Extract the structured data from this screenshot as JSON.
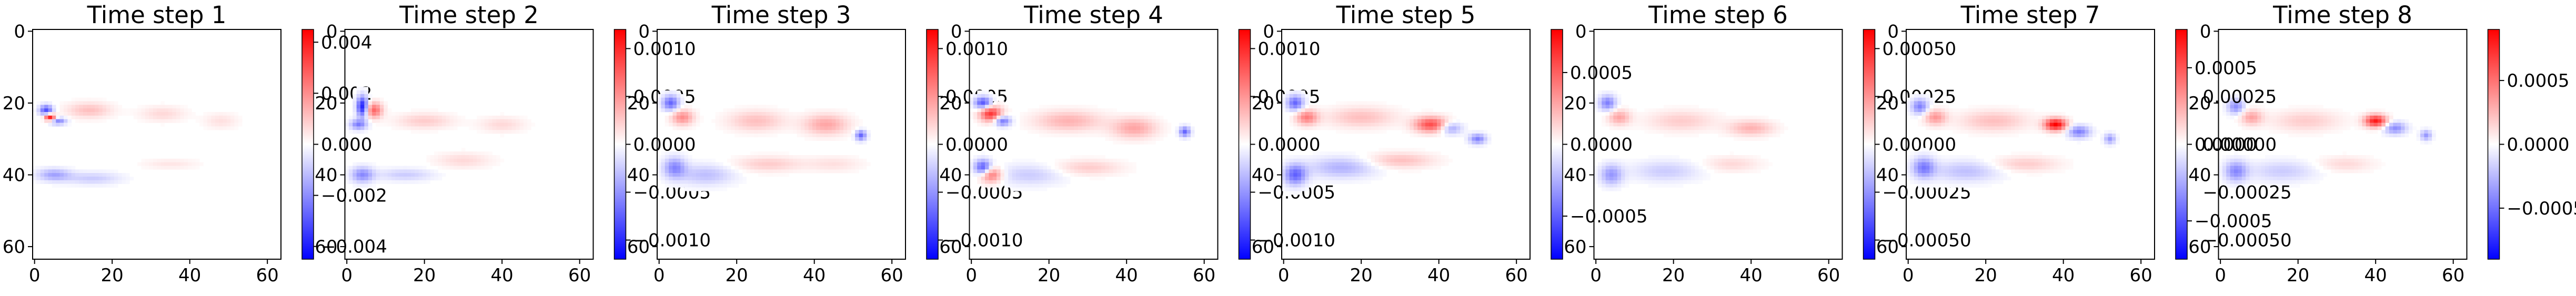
{
  "chart_data": {
    "type": "heatmap",
    "colormap": "bwr",
    "grid": false,
    "panels": [
      {
        "title": "Time step 1",
        "vmin": -0.0045,
        "vmax": 0.0045,
        "cbar_ticks": [
          -0.004,
          -0.002,
          0.0,
          0.002,
          0.004
        ],
        "cbar_labels": [
          "−0.004",
          "−0.002",
          "0.000",
          "0.002",
          "0.004"
        ],
        "blobs": [
          {
            "x": 4,
            "y": 24,
            "sx": 1.0,
            "sy": 0.7,
            "v": 1.0
          },
          {
            "x": 3,
            "y": 22,
            "sx": 1.2,
            "sy": 1.0,
            "v": -0.7
          },
          {
            "x": 6,
            "y": 25,
            "sx": 1.5,
            "sy": 0.7,
            "v": -0.5
          },
          {
            "x": 14,
            "y": 22,
            "sx": 4,
            "sy": 1.5,
            "v": 0.25
          },
          {
            "x": 33,
            "y": 23,
            "sx": 4,
            "sy": 1.5,
            "v": 0.15
          },
          {
            "x": 48,
            "y": 25,
            "sx": 3,
            "sy": 1.5,
            "v": 0.12
          },
          {
            "x": 5,
            "y": 40,
            "sx": 3,
            "sy": 1.2,
            "v": -0.35
          },
          {
            "x": 15,
            "y": 41,
            "sx": 5,
            "sy": 1.2,
            "v": -0.2
          },
          {
            "x": 35,
            "y": 37,
            "sx": 5,
            "sy": 1.0,
            "v": 0.1
          }
        ]
      },
      {
        "title": "Time step 2",
        "vmin": -0.0012,
        "vmax": 0.0012,
        "cbar_ticks": [
          -0.001,
          -0.0005,
          0.0,
          0.0005,
          0.001
        ],
        "cbar_labels": [
          "−0.0010",
          "−0.0005",
          "0.0000",
          "0.0005",
          "0.0010"
        ],
        "blobs": [
          {
            "x": 4,
            "y": 21,
            "sx": 1.0,
            "sy": 2.0,
            "v": -0.9
          },
          {
            "x": 7,
            "y": 22,
            "sx": 1.5,
            "sy": 1.5,
            "v": 0.6
          },
          {
            "x": 3,
            "y": 26,
            "sx": 1.5,
            "sy": 1.0,
            "v": -0.5
          },
          {
            "x": 20,
            "y": 25,
            "sx": 5,
            "sy": 1.5,
            "v": 0.2
          },
          {
            "x": 40,
            "y": 26,
            "sx": 4,
            "sy": 1.5,
            "v": 0.15
          },
          {
            "x": 4,
            "y": 40,
            "sx": 2,
            "sy": 1.5,
            "v": -0.45
          },
          {
            "x": 15,
            "y": 40,
            "sx": 5,
            "sy": 1.2,
            "v": -0.2
          },
          {
            "x": 30,
            "y": 36,
            "sx": 5,
            "sy": 1.5,
            "v": 0.15
          }
        ]
      },
      {
        "title": "Time step 3",
        "vmin": -0.0012,
        "vmax": 0.0012,
        "cbar_ticks": [
          -0.001,
          -0.0005,
          0.0,
          0.0005,
          0.001
        ],
        "cbar_labels": [
          "−0.0010",
          "−0.0005",
          "0.0000",
          "0.0005",
          "0.0010"
        ],
        "blobs": [
          {
            "x": 3,
            "y": 20,
            "sx": 1.5,
            "sy": 1.5,
            "v": -0.6
          },
          {
            "x": 6,
            "y": 24,
            "sx": 2,
            "sy": 1.5,
            "v": 0.45
          },
          {
            "x": 25,
            "y": 25,
            "sx": 5,
            "sy": 2,
            "v": 0.25
          },
          {
            "x": 43,
            "y": 26,
            "sx": 4,
            "sy": 2,
            "v": 0.35
          },
          {
            "x": 52,
            "y": 29,
            "sx": 1.0,
            "sy": 1.0,
            "v": -0.6
          },
          {
            "x": 4,
            "y": 38,
            "sx": 2,
            "sy": 2,
            "v": -0.45
          },
          {
            "x": 12,
            "y": 40,
            "sx": 5,
            "sy": 2,
            "v": -0.25
          },
          {
            "x": 28,
            "y": 37,
            "sx": 6,
            "sy": 1.5,
            "v": 0.2
          },
          {
            "x": 45,
            "y": 37,
            "sx": 5,
            "sy": 1.5,
            "v": 0.12
          }
        ]
      },
      {
        "title": "Time step 4",
        "vmin": -0.0012,
        "vmax": 0.0012,
        "cbar_ticks": [
          -0.001,
          -0.0005,
          0.0,
          0.0005,
          0.001
        ],
        "cbar_labels": [
          "−0.0010",
          "−0.0005",
          "0.0000",
          "0.0005",
          "0.0010"
        ],
        "blobs": [
          {
            "x": 3,
            "y": 20,
            "sx": 1.5,
            "sy": 1.2,
            "v": -0.7
          },
          {
            "x": 5,
            "y": 23,
            "sx": 2,
            "sy": 1.5,
            "v": 0.8
          },
          {
            "x": 8,
            "y": 25,
            "sx": 1.5,
            "sy": 1.0,
            "v": -0.6
          },
          {
            "x": 25,
            "y": 25,
            "sx": 6,
            "sy": 2,
            "v": 0.3
          },
          {
            "x": 42,
            "y": 27,
            "sx": 4,
            "sy": 2,
            "v": 0.35
          },
          {
            "x": 55,
            "y": 28,
            "sx": 1.0,
            "sy": 1.0,
            "v": -0.6
          },
          {
            "x": 3,
            "y": 38,
            "sx": 1.5,
            "sy": 1.5,
            "v": -0.7
          },
          {
            "x": 5,
            "y": 40,
            "sx": 2,
            "sy": 1.5,
            "v": 0.6
          },
          {
            "x": 15,
            "y": 40,
            "sx": 6,
            "sy": 2,
            "v": -0.2
          },
          {
            "x": 30,
            "y": 38,
            "sx": 6,
            "sy": 1.5,
            "v": 0.2
          }
        ]
      },
      {
        "title": "Time step 5",
        "vmin": -0.0008,
        "vmax": 0.0008,
        "cbar_ticks": [
          -0.0005,
          0.0,
          0.0005
        ],
        "cbar_labels": [
          "−0.0005",
          "0.0000",
          "0.0005"
        ],
        "blobs": [
          {
            "x": 3,
            "y": 20,
            "sx": 1.5,
            "sy": 1.5,
            "v": -0.6
          },
          {
            "x": 6,
            "y": 24,
            "sx": 2,
            "sy": 1.5,
            "v": 0.5
          },
          {
            "x": 20,
            "y": 24,
            "sx": 6,
            "sy": 2,
            "v": 0.25
          },
          {
            "x": 38,
            "y": 26,
            "sx": 3,
            "sy": 1.5,
            "v": 0.7
          },
          {
            "x": 43,
            "y": 27,
            "sx": 2,
            "sy": 1.2,
            "v": -0.4
          },
          {
            "x": 50,
            "y": 30,
            "sx": 1.5,
            "sy": 1.0,
            "v": -0.5
          },
          {
            "x": 3,
            "y": 40,
            "sx": 2,
            "sy": 2,
            "v": -0.6
          },
          {
            "x": 15,
            "y": 38,
            "sx": 6,
            "sy": 2,
            "v": -0.3
          },
          {
            "x": 30,
            "y": 36,
            "sx": 6,
            "sy": 1.5,
            "v": 0.25
          }
        ]
      },
      {
        "title": "Time step 6",
        "vmin": -0.0006,
        "vmax": 0.0006,
        "cbar_ticks": [
          -0.0005,
          -0.00025,
          0.0,
          0.00025,
          0.0005
        ],
        "cbar_labels": [
          "−0.00050",
          "−0.00025",
          "0.00000",
          "0.00025",
          "0.00050"
        ],
        "blobs": [
          {
            "x": 3,
            "y": 20,
            "sx": 1.5,
            "sy": 1.5,
            "v": -0.5
          },
          {
            "x": 6,
            "y": 24,
            "sx": 2,
            "sy": 1.5,
            "v": 0.35
          },
          {
            "x": 22,
            "y": 25,
            "sx": 6,
            "sy": 2,
            "v": 0.2
          },
          {
            "x": 40,
            "y": 27,
            "sx": 4,
            "sy": 1.5,
            "v": 0.3
          },
          {
            "x": 4,
            "y": 40,
            "sx": 2,
            "sy": 2,
            "v": -0.4
          },
          {
            "x": 18,
            "y": 39,
            "sx": 6,
            "sy": 2,
            "v": -0.2
          },
          {
            "x": 35,
            "y": 37,
            "sx": 5,
            "sy": 1.5,
            "v": 0.15
          }
        ]
      },
      {
        "title": "Time step 7",
        "vmin": -0.00075,
        "vmax": 0.00075,
        "cbar_ticks": [
          -0.0005,
          0.0,
          0.0005
        ],
        "cbar_labels": [
          "−0.0005",
          "0.0000",
          "0.0005"
        ],
        "blobs": [
          {
            "x": 3,
            "y": 21,
            "sx": 1.5,
            "sy": 1.5,
            "v": -0.5
          },
          {
            "x": 7,
            "y": 24,
            "sx": 2,
            "sy": 1.5,
            "v": 0.4
          },
          {
            "x": 22,
            "y": 25,
            "sx": 6,
            "sy": 2,
            "v": 0.25
          },
          {
            "x": 38,
            "y": 26,
            "sx": 2,
            "sy": 1.2,
            "v": 1.0
          },
          {
            "x": 44,
            "y": 28,
            "sx": 2,
            "sy": 1.2,
            "v": -0.5
          },
          {
            "x": 52,
            "y": 30,
            "sx": 1.0,
            "sy": 1.0,
            "v": -0.4
          },
          {
            "x": 4,
            "y": 38,
            "sx": 2,
            "sy": 2,
            "v": -0.5
          },
          {
            "x": 15,
            "y": 39,
            "sx": 6,
            "sy": 2,
            "v": -0.25
          },
          {
            "x": 30,
            "y": 37,
            "sx": 6,
            "sy": 1.5,
            "v": 0.2
          }
        ]
      },
      {
        "title": "Time step 8",
        "vmin": -0.0009,
        "vmax": 0.0009,
        "cbar_ticks": [
          -0.0005,
          0.0,
          0.0005
        ],
        "cbar_labels": [
          "−0.0005",
          "0.0000",
          "0.0005"
        ],
        "extra_ticks": [
          {
            "v": 0.00025,
            "label": "0.00025"
          },
          {
            "v": 0.0,
            "label": "0.00000"
          },
          {
            "v": -0.00025,
            "label": "−0.00025"
          },
          {
            "v": -0.0005,
            "label": "−0.00050"
          }
        ],
        "blobs": [
          {
            "x": 4,
            "y": 21,
            "sx": 1.5,
            "sy": 1.5,
            "v": -0.45
          },
          {
            "x": 8,
            "y": 24,
            "sx": 2,
            "sy": 1.5,
            "v": 0.35
          },
          {
            "x": 22,
            "y": 25,
            "sx": 6,
            "sy": 2,
            "v": 0.2
          },
          {
            "x": 40,
            "y": 25,
            "sx": 2,
            "sy": 1.2,
            "v": 0.9
          },
          {
            "x": 45,
            "y": 27,
            "sx": 2,
            "sy": 1.2,
            "v": -0.45
          },
          {
            "x": 53,
            "y": 29,
            "sx": 1.0,
            "sy": 1.0,
            "v": -0.4
          },
          {
            "x": 4,
            "y": 39,
            "sx": 2,
            "sy": 2,
            "v": -0.45
          },
          {
            "x": 16,
            "y": 39,
            "sx": 6,
            "sy": 2,
            "v": -0.2
          },
          {
            "x": 32,
            "y": 37,
            "sx": 5,
            "sy": 1.5,
            "v": 0.15
          }
        ]
      }
    ],
    "xticks": [
      0,
      20,
      40,
      60
    ],
    "yticks": [
      0,
      20,
      40,
      60
    ],
    "xlim": [
      0,
      64
    ],
    "ylim": [
      64,
      0
    ]
  }
}
